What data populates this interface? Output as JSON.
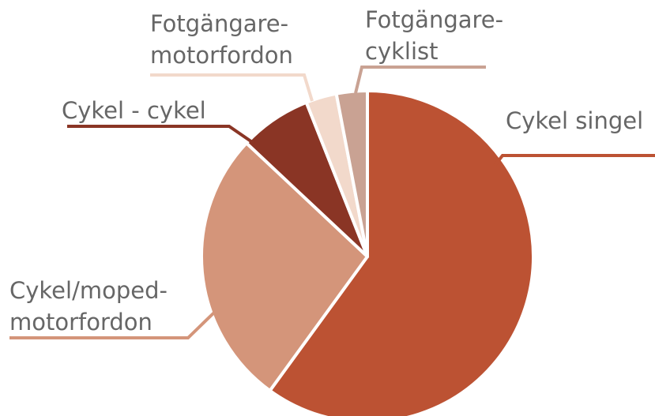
{
  "chart_data": {
    "type": "pie",
    "categories": [
      "Cykel singel",
      "Cykel/moped-motorfordon",
      "Cykel - cykel",
      "Fotgängare-motorfordon",
      "Fotgängare-cyklist"
    ],
    "values": [
      60,
      27,
      7,
      3,
      3
    ],
    "colors": [
      "#bc5233",
      "#d4957a",
      "#8a3525",
      "#f2d9cb",
      "#c9a293"
    ]
  }
}
